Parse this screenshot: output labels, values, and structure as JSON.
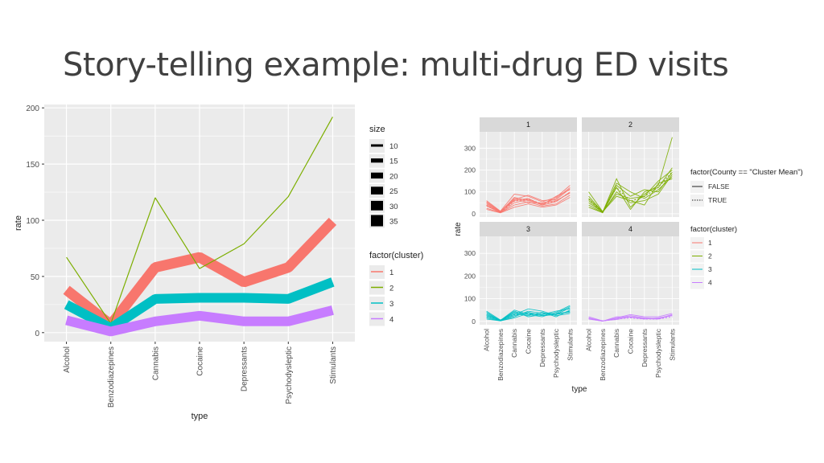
{
  "slide": {
    "title": "Story-telling example: multi-drug ED visits"
  },
  "colors": {
    "c1": "#F8766D",
    "c2": "#7CAE00",
    "c3": "#00BFC4",
    "c4": "#C77CFF",
    "panel_bg": "#EBEBEB",
    "grid": "#FFFFFF",
    "strip_bg": "#D9D9D9"
  },
  "chart_data": [
    {
      "type": "line",
      "title": "",
      "xlabel": "type",
      "ylabel": "rate",
      "categories": [
        "Alcohol",
        "Benzodiazepines",
        "Cannabis",
        "Cocaine",
        "Depressants",
        "Psychodysleptic",
        "Stimulants"
      ],
      "ylim": [
        -8,
        203
      ],
      "yticks": [
        0,
        50,
        100,
        150,
        200
      ],
      "grid": true,
      "series": [
        {
          "name": "1",
          "size": 15,
          "values": [
            38,
            7,
            58,
            67,
            45,
            58,
            99
          ]
        },
        {
          "name": "2",
          "size": 1,
          "values": [
            67,
            8,
            120,
            57,
            79,
            121,
            192
          ]
        },
        {
          "name": "3",
          "size": 10,
          "values": [
            25,
            4,
            30,
            31,
            31,
            30,
            45
          ]
        },
        {
          "name": "4",
          "size": 10,
          "values": [
            11,
            1,
            10,
            15,
            10,
            10,
            20
          ]
        }
      ],
      "legend_size": {
        "title": "size",
        "labels": [
          "10",
          "15",
          "20",
          "25",
          "30",
          "35"
        ]
      },
      "legend_cluster": {
        "title": "factor(cluster)",
        "labels": [
          "1",
          "2",
          "3",
          "4"
        ]
      }
    },
    {
      "type": "line",
      "title": "",
      "xlabel": "type",
      "ylabel": "rate",
      "categories": [
        "Alcohol",
        "Benzodiazepines",
        "Cannabis",
        "Cocaine",
        "Depressants",
        "Psychodysleptic",
        "Stimulants"
      ],
      "ylim": [
        -15,
        375
      ],
      "yticks": [
        0,
        100,
        200,
        300
      ],
      "grid": true,
      "facets": [
        {
          "label": "1",
          "cluster": 1,
          "mean": [
            38,
            7,
            58,
            67,
            45,
            58,
            99
          ],
          "lines": [
            [
              50,
              8,
              75,
              60,
              45,
              70,
              120
            ],
            [
              25,
              5,
              40,
              55,
              35,
              45,
              85
            ],
            [
              60,
              12,
              90,
              80,
              55,
              75,
              130
            ],
            [
              35,
              6,
              50,
              65,
              40,
              55,
              100
            ],
            [
              45,
              9,
              65,
              85,
              60,
              65,
              115
            ],
            [
              20,
              4,
              30,
              45,
              30,
              40,
              75
            ],
            [
              40,
              7,
              70,
              50,
              50,
              60,
              95
            ],
            [
              55,
              10,
              60,
              70,
              40,
              80,
              110
            ]
          ]
        },
        {
          "label": "2",
          "cluster": 2,
          "mean": [
            67,
            8,
            120,
            57,
            79,
            121,
            192
          ],
          "lines": [
            [
              60,
              6,
              160,
              30,
              90,
              130,
              350
            ],
            [
              100,
              10,
              90,
              70,
              80,
              150,
              200
            ],
            [
              30,
              5,
              100,
              50,
              60,
              90,
              180
            ],
            [
              80,
              8,
              140,
              100,
              70,
              110,
              170
            ],
            [
              50,
              7,
              120,
              20,
              100,
              120,
              210
            ],
            [
              70,
              9,
              80,
              60,
              40,
              140,
              160
            ],
            [
              40,
              4,
              130,
              80,
              110,
              100,
              190
            ]
          ]
        },
        {
          "label": "3",
          "cluster": 3,
          "mean": [
            25,
            4,
            30,
            31,
            31,
            30,
            45
          ],
          "lines": [
            [
              30,
              5,
              40,
              35,
              30,
              45,
              55
            ],
            [
              20,
              3,
              25,
              40,
              25,
              30,
              60
            ],
            [
              45,
              6,
              35,
              25,
              40,
              20,
              50
            ],
            [
              15,
              2,
              20,
              45,
              35,
              35,
              40
            ],
            [
              35,
              4,
              50,
              30,
              20,
              40,
              70
            ],
            [
              25,
              5,
              30,
              55,
              45,
              25,
              35
            ],
            [
              40,
              3,
              45,
              20,
              30,
              35,
              65
            ],
            [
              10,
              2,
              15,
              35,
              25,
              30,
              45
            ]
          ]
        },
        {
          "label": "4",
          "cluster": 4,
          "mean": [
            11,
            1,
            10,
            15,
            10,
            10,
            20
          ],
          "lines": [
            [
              20,
              2,
              12,
              25,
              15,
              12,
              30
            ],
            [
              15,
              1,
              20,
              18,
              10,
              15,
              25
            ],
            [
              10,
              1,
              15,
              30,
              20,
              20,
              35
            ],
            [
              12,
              2,
              8,
              20,
              12,
              10,
              28
            ]
          ]
        }
      ],
      "legend_linetype": {
        "title": "factor(County == \"Cluster Mean\")",
        "labels": [
          "FALSE",
          "TRUE"
        ]
      },
      "legend_cluster": {
        "title": "factor(cluster)",
        "labels": [
          "1",
          "2",
          "3",
          "4"
        ]
      }
    }
  ]
}
